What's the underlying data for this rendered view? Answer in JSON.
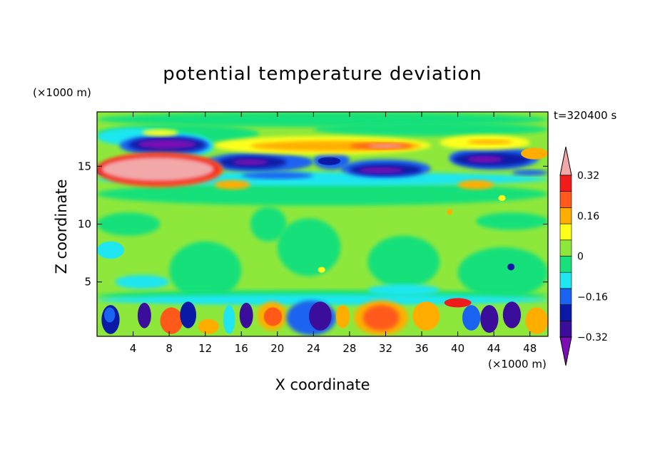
{
  "chart_data": {
    "type": "heatmap",
    "title": "potential temperature deviation",
    "xlabel": "X coordinate",
    "ylabel": "Z coordinate",
    "x_unit": "(×1000 m)",
    "z_unit": "(×1000 m)",
    "time_label": "t=320400 s",
    "xlim": [
      0,
      50
    ],
    "zlim": [
      0.3,
      19.7
    ],
    "x_ticks": [
      4,
      8,
      12,
      16,
      20,
      24,
      28,
      32,
      36,
      40,
      44,
      48
    ],
    "z_ticks": [
      5,
      10,
      15
    ],
    "colorbar": {
      "levels": [
        -0.4,
        -0.32,
        -0.24,
        -0.16,
        -0.08,
        0,
        0.08,
        0.16,
        0.24,
        0.32,
        0.4
      ],
      "colors": [
        "#7b0fb5",
        "#3a0e9a",
        "#0a1aa6",
        "#1a63f0",
        "#1fe6f0",
        "#18e07a",
        "#8ee83c",
        "#ffff1a",
        "#ffae00",
        "#ff5a1a",
        "#f01c1c",
        "#f2a8a8"
      ],
      "tick_labels": [
        "0.32",
        "0.16",
        "0",
        "−0.16",
        "−0.32"
      ],
      "extend": "both"
    },
    "field_description": "Mostly near-zero (green) field with strong anomalies: a warm (pink/red, > 0.4) tilted layer near z=14-16 km from x=0-13 km, cold (purple/blue, < -0.32) bands near z=15-17 km, alternating warm/cold cells in the boundary layer below z=3.5 km.",
    "features": [
      {
        "kind": "warm_layer",
        "x": [
          0,
          13.5
        ],
        "z": [
          13.3,
          16.2
        ],
        "value": 0.45
      },
      {
        "kind": "cold_band",
        "x": [
          3,
          12
        ],
        "z": [
          16,
          17.5
        ],
        "value": -0.42
      },
      {
        "kind": "cold_band",
        "x": [
          12,
          24
        ],
        "z": [
          14.5,
          16.2
        ],
        "value": -0.36
      },
      {
        "kind": "cold_band",
        "x": [
          27,
          37
        ],
        "z": [
          14,
          15.5
        ],
        "value": -0.36
      },
      {
        "kind": "cold_band",
        "x": [
          39,
          49
        ],
        "z": [
          14.7,
          16.5
        ],
        "value": -0.36
      },
      {
        "kind": "warm_band",
        "x": [
          13,
          37
        ],
        "z": [
          16,
          17.5
        ],
        "value": 0.25
      },
      {
        "kind": "warm_band",
        "x": [
          38,
          48
        ],
        "z": [
          16.5,
          17.6
        ],
        "value": 0.2
      },
      {
        "kind": "bl_cells",
        "x": [
          0,
          50
        ],
        "z": [
          0.3,
          3.5
        ],
        "value_range": [
          -0.42,
          0.3
        ]
      }
    ]
  }
}
